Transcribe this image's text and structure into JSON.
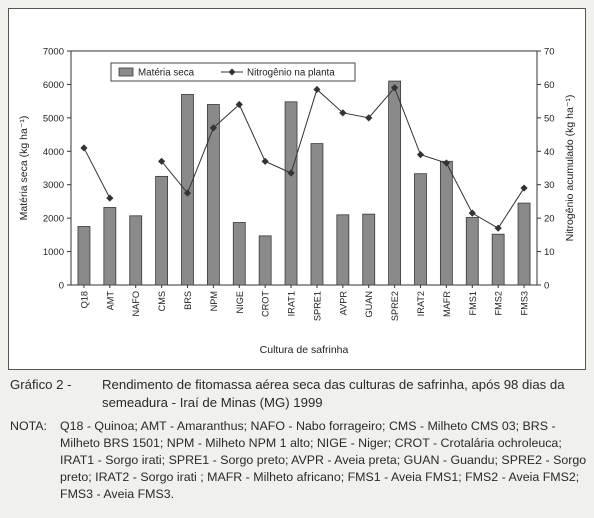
{
  "chart_data": {
    "type": "bar",
    "categories": [
      "Q18",
      "AMT",
      "NAFO",
      "CMS",
      "BRS",
      "NPM",
      "NIGE",
      "CROT",
      "IRAT1",
      "SPRE1",
      "AVPR",
      "GUAN",
      "SPRE2",
      "IRAT2",
      "MAFR",
      "FMS1",
      "FMS2",
      "FMS3"
    ],
    "series": [
      {
        "name": "Matéria seca",
        "kind": "bar",
        "axis": "left",
        "color": "#8a8a8a",
        "values": [
          1750,
          2320,
          2070,
          3250,
          5700,
          5400,
          1870,
          1470,
          5480,
          4230,
          2100,
          2120,
          6100,
          3330,
          3700,
          2020,
          1520,
          2450
        ]
      },
      {
        "name": "Nitrogênio na planta",
        "kind": "line",
        "axis": "right",
        "color": "#333333",
        "values": [
          41,
          26,
          null,
          37,
          27.5,
          47,
          54,
          37,
          33.5,
          58.5,
          51.5,
          50,
          59,
          39,
          36.5,
          21.5,
          17,
          29
        ]
      }
    ],
    "xlabel": "Cultura de safrinha",
    "ylabel_left": "Matéria seca (kg ha⁻¹)",
    "ylabel_right": "Nitrogênio acumulado (kg ha⁻¹)",
    "ylim_left": [
      0,
      7000
    ],
    "ylim_right": [
      0,
      70
    ],
    "yticks_left": [
      "0",
      "1000",
      "2000",
      "3000",
      "4000",
      "5000",
      "6000",
      "7000"
    ],
    "yticks_right": [
      "0",
      "10",
      "20",
      "30",
      "40",
      "50",
      "60",
      "70"
    ],
    "legend_position": "top-center",
    "grid": false
  },
  "caption": {
    "label": "Gráfico 2 -",
    "text": "Rendimento de fitomassa aérea seca das culturas de safrinha, após 98 dias da semeadura - Iraí de Minas (MG) 1999"
  },
  "note": {
    "label": "NOTA:",
    "text": "Q18 - Quinoa; AMT - Amaranthus; NAFO - Nabo forrageiro; CMS - Milheto CMS 03; BRS - Milheto BRS 1501; NPM - Milheto NPM 1 alto; NIGE - Niger; CROT - Crotalária ochroleuca; IRAT1 - Sorgo irati; SPRE1 - Sorgo preto; AVPR - Aveia preta; GUAN - Guandu; SPRE2 - Sorgo preto; IRAT2 - Sorgo irati ; MAFR - Milheto africano; FMS1 - Aveia FMS1; FMS2 - Aveia FMS2; FMS3 - Aveia FMS3."
  }
}
